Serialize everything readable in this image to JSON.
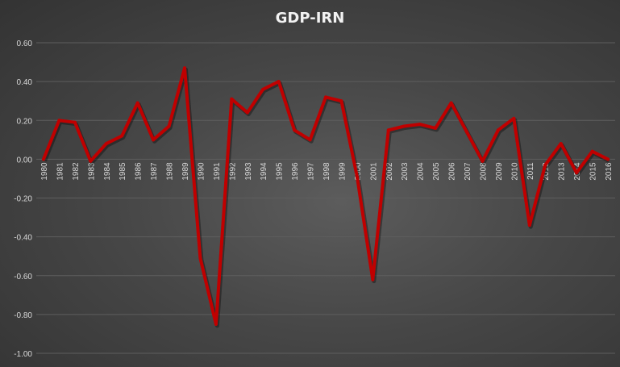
{
  "chart_data": {
    "type": "line",
    "title": "GDP-IRN",
    "xlabel": "",
    "ylabel": "",
    "ylim": [
      -1.0,
      0.6
    ],
    "y_ticks": [
      "0.60",
      "0.40",
      "0.20",
      "0.00",
      "-0.20",
      "-0.40",
      "-0.60",
      "-0.80",
      "-1.00"
    ],
    "grid": true,
    "legend": "none",
    "categories": [
      "1980",
      "1981",
      "1982",
      "1983",
      "1984",
      "1985",
      "1986",
      "1987",
      "1988",
      "1989",
      "1990",
      "1991",
      "1992",
      "1993",
      "1994",
      "1995",
      "1996",
      "1997",
      "1998",
      "1999",
      "2000",
      "2001",
      "2002",
      "2003",
      "2004",
      "2005",
      "2006",
      "2007",
      "2008",
      "2009",
      "2010",
      "2011",
      "2012",
      "2013",
      "2014",
      "2015",
      "2016"
    ],
    "series": [
      {
        "color": "#c00000",
        "values": [
          0.0,
          0.2,
          0.19,
          -0.01,
          0.08,
          0.12,
          0.29,
          0.1,
          0.17,
          0.47,
          -0.51,
          -0.85,
          0.31,
          0.24,
          0.36,
          0.4,
          0.15,
          0.1,
          0.32,
          0.3,
          -0.09,
          -0.62,
          0.15,
          0.17,
          0.18,
          0.16,
          0.29,
          0.14,
          -0.01,
          0.15,
          0.21,
          -0.34,
          -0.03,
          0.08,
          -0.07,
          0.04,
          0.0
        ]
      }
    ]
  }
}
